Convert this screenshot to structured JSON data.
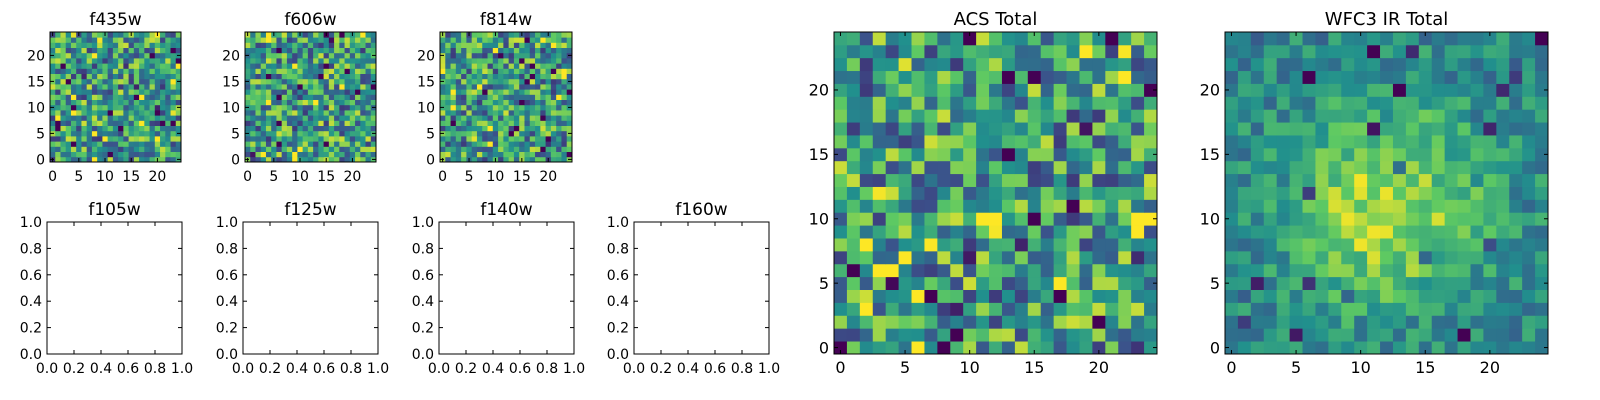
{
  "chart_data": [
    {
      "type": "heatmap",
      "title": "f435w",
      "xlim": [
        -0.5,
        24.5
      ],
      "ylim": [
        -0.5,
        24.5
      ],
      "xticks": [
        0,
        5,
        10,
        15,
        20
      ],
      "yticks": [
        0,
        5,
        10,
        15,
        20
      ],
      "grid_size": 25,
      "colormap": "viridis",
      "pattern": "noise"
    },
    {
      "type": "heatmap",
      "title": "f606w",
      "xlim": [
        -0.5,
        24.5
      ],
      "ylim": [
        -0.5,
        24.5
      ],
      "xticks": [
        0,
        5,
        10,
        15,
        20
      ],
      "yticks": [
        0,
        5,
        10,
        15,
        20
      ],
      "grid_size": 25,
      "colormap": "viridis",
      "pattern": "noise"
    },
    {
      "type": "heatmap",
      "title": "f814w",
      "xlim": [
        -0.5,
        24.5
      ],
      "ylim": [
        -0.5,
        24.5
      ],
      "xticks": [
        0,
        5,
        10,
        15,
        20
      ],
      "yticks": [
        0,
        5,
        10,
        15,
        20
      ],
      "grid_size": 25,
      "colormap": "viridis",
      "pattern": "noise"
    },
    {
      "type": "scatter",
      "title": "f105w",
      "xlim": [
        0,
        1
      ],
      "ylim": [
        0,
        1
      ],
      "xticks": [
        "0.0",
        "0.2",
        "0.4",
        "0.6",
        "0.8",
        "1.0"
      ],
      "yticks": [
        "0.0",
        "0.2",
        "0.4",
        "0.6",
        "0.8",
        "1.0"
      ],
      "series": []
    },
    {
      "type": "scatter",
      "title": "f125w",
      "xlim": [
        0,
        1
      ],
      "ylim": [
        0,
        1
      ],
      "xticks": [
        "0.0",
        "0.2",
        "0.4",
        "0.6",
        "0.8",
        "1.0"
      ],
      "yticks": [
        "0.0",
        "0.2",
        "0.4",
        "0.6",
        "0.8",
        "1.0"
      ],
      "series": []
    },
    {
      "type": "scatter",
      "title": "f140w",
      "xlim": [
        0,
        1
      ],
      "ylim": [
        0,
        1
      ],
      "xticks": [
        "0.0",
        "0.2",
        "0.4",
        "0.6",
        "0.8",
        "1.0"
      ],
      "yticks": [
        "0.0",
        "0.2",
        "0.4",
        "0.6",
        "0.8",
        "1.0"
      ],
      "series": []
    },
    {
      "type": "scatter",
      "title": "f160w",
      "xlim": [
        0,
        1
      ],
      "ylim": [
        0,
        1
      ],
      "xticks": [
        "0.0",
        "0.2",
        "0.4",
        "0.6",
        "0.8",
        "1.0"
      ],
      "yticks": [
        "0.0",
        "0.2",
        "0.4",
        "0.6",
        "0.8",
        "1.0"
      ],
      "series": []
    },
    {
      "type": "heatmap",
      "title": "ACS Total",
      "xlim": [
        -0.5,
        24.5
      ],
      "ylim": [
        -0.5,
        24.5
      ],
      "xticks": [
        0,
        5,
        10,
        15,
        20
      ],
      "yticks": [
        0,
        5,
        10,
        15,
        20
      ],
      "grid_size": 25,
      "colormap": "viridis",
      "pattern": "noise"
    },
    {
      "type": "heatmap",
      "title": "WFC3 IR Total",
      "xlim": [
        -0.5,
        24.5
      ],
      "ylim": [
        -0.5,
        24.5
      ],
      "xticks": [
        0,
        5,
        10,
        15,
        20
      ],
      "yticks": [
        0,
        5,
        10,
        15,
        20
      ],
      "grid_size": 25,
      "colormap": "viridis",
      "pattern": "central-source"
    }
  ],
  "colors": {
    "axis": "#000000",
    "background": "#ffffff",
    "viridis": [
      "#440154",
      "#3b528b",
      "#21908d",
      "#5dc963",
      "#fde725"
    ]
  }
}
